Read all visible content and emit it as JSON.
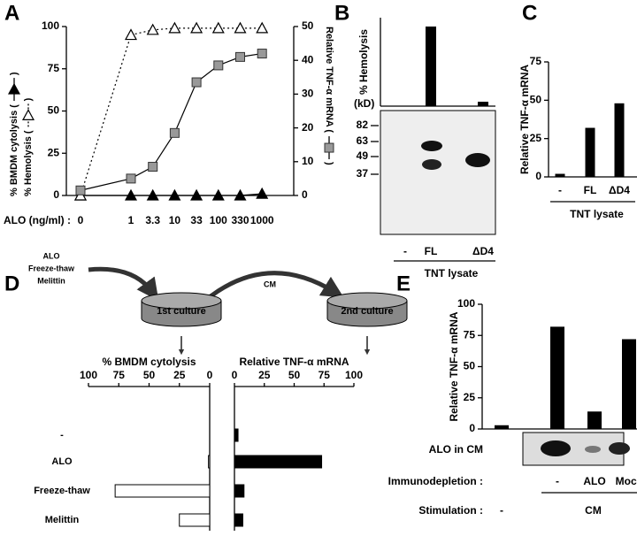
{
  "panels": [
    "A",
    "B",
    "C",
    "D",
    "E"
  ],
  "diagram": {
    "inputs": [
      "ALO",
      "Freeze-thaw",
      "Melittin"
    ],
    "transfer": "CM",
    "cultures": [
      "1st culture",
      "2nd culture"
    ]
  },
  "chart_data": [
    {
      "type": "line",
      "categories": [
        "0",
        "1",
        "3.3",
        "10",
        "33",
        "100",
        "330",
        "1000"
      ],
      "xlabel": "ALO (ng/ml) :",
      "ylim": [
        0,
        100
      ],
      "yticks": [
        0,
        25,
        50,
        75,
        100
      ],
      "y2lim": [
        0,
        50
      ],
      "y2ticks": [
        0,
        10,
        20,
        30,
        40,
        50
      ],
      "series": [
        {
          "axis_label": "% BMDM cytolysis (",
          "axis_label_end": ")",
          "marker": "filled-triangle",
          "color": "#000000",
          "line": "solid",
          "values": [
            0,
            0,
            0,
            0,
            0,
            0,
            0,
            1
          ]
        },
        {
          "axis_label": "% Hemolysis (",
          "axis_label_end": ")",
          "marker": "open-triangle",
          "color": "#000000",
          "line": "dotted",
          "values": [
            0,
            95,
            98,
            99,
            99,
            99,
            99,
            99
          ]
        },
        {
          "axis_label": "Relative TNF-α mRNA (",
          "axis_label_end": ")",
          "marker": "square",
          "color": "#999999",
          "line": "solid",
          "axis": "y2",
          "values": [
            1.5,
            5,
            8.5,
            18.5,
            33.5,
            38.5,
            41,
            42
          ]
        }
      ]
    },
    {
      "type": "bar",
      "ylabel": "% Hemolysis",
      "ylim": [
        0,
        20
      ],
      "categories": [
        "-",
        "FL",
        "ΔD4"
      ],
      "values": [
        0,
        18,
        1
      ],
      "color": "#000000",
      "group_label": "TNT lysate",
      "blot": {
        "unit": "(kD)",
        "markers": [
          82,
          63,
          49,
          37
        ]
      }
    },
    {
      "type": "bar",
      "ylabel": "Relative TNF-α mRNA",
      "ylim": [
        0,
        75
      ],
      "yticks": [
        0,
        25,
        50,
        75
      ],
      "categories": [
        "-",
        "FL",
        "ΔD4"
      ],
      "values": [
        2,
        32,
        48
      ],
      "color": "#000000",
      "group_label": "TNT lysate"
    },
    {
      "type": "bar",
      "orientation": "horizontal",
      "title": "% BMDM cytolysis",
      "xlim": [
        100,
        0
      ],
      "xticks": [
        100,
        75,
        50,
        25,
        0
      ],
      "categories": [
        "-",
        "ALO",
        "Freeze-thaw",
        "Melittin"
      ],
      "values": [
        0,
        1,
        78,
        25
      ],
      "color": "#ffffff"
    },
    {
      "type": "bar",
      "orientation": "horizontal",
      "title": "Relative TNF-α mRNA",
      "xlim": [
        0,
        100
      ],
      "xticks": [
        0,
        25,
        50,
        75,
        100
      ],
      "values": [
        3,
        73,
        8,
        7
      ],
      "color": "#000000"
    },
    {
      "type": "bar",
      "ylabel": "Relative TNF-α mRNA",
      "ylim": [
        0,
        100
      ],
      "yticks": [
        0,
        25,
        50,
        75,
        100
      ],
      "categories": [
        null,
        "-",
        "ALO",
        "Mock"
      ],
      "values": [
        3,
        82,
        14,
        72
      ],
      "color": "#000000",
      "categories_label": "Immunodepletion :",
      "blot_label": "ALO in CM",
      "stimulation": {
        "label": "Stimulation :",
        "labels": [
          "-",
          "CM"
        ]
      }
    }
  ]
}
